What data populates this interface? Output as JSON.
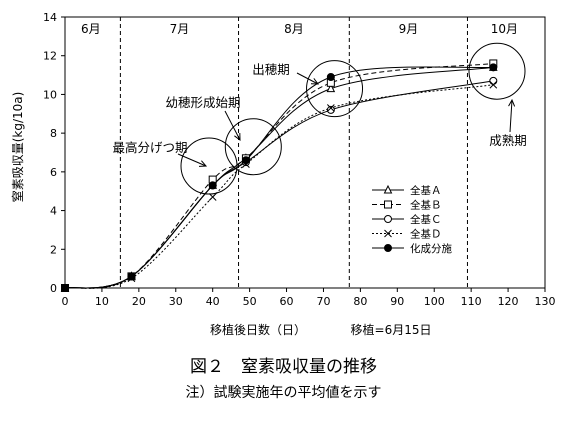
{
  "chart_data": {
    "type": "line",
    "title": "図２　窒素吸収量の推移",
    "note": "注）試験実施年の平均値を示す",
    "xlabel": "移植後日数（日）",
    "xlabel_extra": "移植=6月15日",
    "ylabel": "窒素吸収量(kg/10a)",
    "xlim": [
      0,
      130
    ],
    "ylim": [
      0,
      14
    ],
    "xticks": [
      0,
      10,
      20,
      30,
      40,
      50,
      60,
      70,
      80,
      90,
      100,
      110,
      120,
      130
    ],
    "yticks": [
      0,
      2,
      4,
      6,
      8,
      10,
      12,
      14
    ],
    "grid": false,
    "legend_position": "lower-right",
    "month_boundaries": [
      15,
      47,
      77,
      109
    ],
    "months": [
      {
        "label": "6月",
        "x": 7
      },
      {
        "label": "7月",
        "x": 31
      },
      {
        "label": "8月",
        "x": 62
      },
      {
        "label": "9月",
        "x": 93
      },
      {
        "label": "10月",
        "x": 119
      }
    ],
    "stages": [
      {
        "label": "最高分げつ期",
        "circle": [
          39,
          6.3
        ]
      },
      {
        "label": "幼穂形成始期",
        "circle": [
          51,
          7.3
        ]
      },
      {
        "label": "出穂期",
        "circle": [
          73,
          10.3
        ]
      },
      {
        "label": "成熟期",
        "circle": [
          117,
          11.2
        ]
      }
    ],
    "x": [
      0,
      18,
      40,
      49,
      72,
      116
    ],
    "series": [
      {
        "name": "全基Ａ",
        "marker": "triangle",
        "dash": "solid",
        "values": [
          0,
          0.6,
          5.3,
          6.7,
          10.3,
          11.4
        ]
      },
      {
        "name": "全基Ｂ",
        "marker": "square",
        "dash": "dashed",
        "values": [
          0,
          0.6,
          5.6,
          6.7,
          10.6,
          11.6
        ]
      },
      {
        "name": "全基Ｃ",
        "marker": "circle",
        "dash": "solid",
        "values": [
          0,
          0.6,
          5.3,
          6.5,
          9.2,
          10.7
        ]
      },
      {
        "name": "全基Ｄ",
        "marker": "cross",
        "dash": "dotted",
        "values": [
          0,
          0.5,
          4.7,
          6.4,
          9.3,
          10.5
        ]
      },
      {
        "name": "化成分施",
        "marker": "dot",
        "dash": "solid",
        "values": [
          0,
          0.6,
          5.3,
          6.6,
          10.9,
          11.4
        ]
      }
    ]
  }
}
